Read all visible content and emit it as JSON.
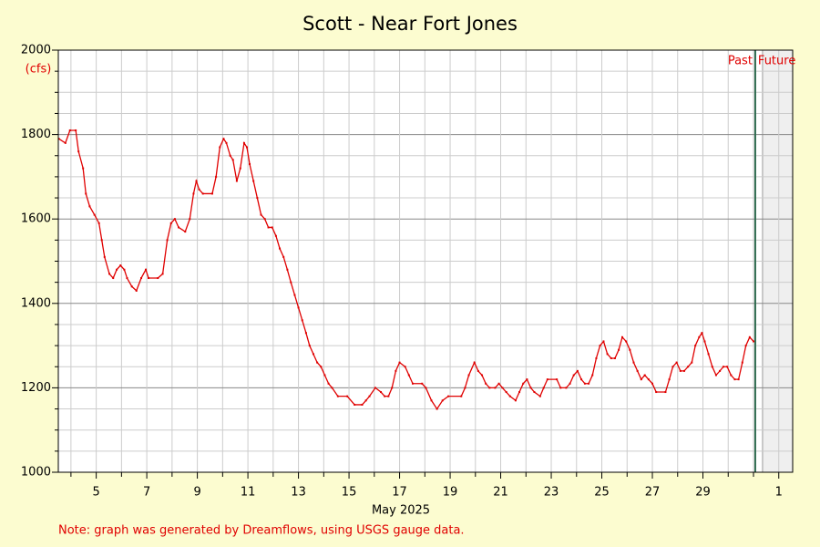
{
  "chart_data": {
    "type": "line",
    "title": "Scott - Near Fort Jones",
    "y_label": "(cfs)",
    "x_label": "May 2025",
    "note": "Note: graph was generated by Dreamflows, using USGS gauge data.",
    "past_label": "Past",
    "future_label": "Future",
    "divider_x": 31.07,
    "color": "#e00000",
    "divider_color": "#2e6b4f",
    "xlim": [
      3.5,
      32.55
    ],
    "ylim": [
      1000,
      2000
    ],
    "xticks": [
      5,
      7,
      9,
      11,
      13,
      15,
      17,
      19,
      21,
      23,
      25,
      27,
      29,
      {
        "value": 32,
        "label": "1"
      }
    ],
    "xminor_ticks": [
      4,
      6,
      8,
      10,
      12,
      14,
      16,
      18,
      20,
      22,
      24,
      26,
      28,
      30,
      31,
      33
    ],
    "yticks": [
      1000,
      1200,
      1400,
      1600,
      1800,
      2000
    ],
    "yminor_ticks": [
      1050,
      1100,
      1150,
      1250,
      1300,
      1350,
      1450,
      1500,
      1550,
      1650,
      1700,
      1750,
      1850,
      1900,
      1950
    ],
    "grid": true,
    "x": [
      3.52,
      3.78,
      3.96,
      4.19,
      4.3,
      4.48,
      4.59,
      4.74,
      4.93,
      5.11,
      5.22,
      5.33,
      5.52,
      5.67,
      5.81,
      5.96,
      6.11,
      6.22,
      6.41,
      6.59,
      6.78,
      6.96,
      7.07,
      7.44,
      7.63,
      7.81,
      7.96,
      8.11,
      8.26,
      8.52,
      8.7,
      8.85,
      8.96,
      9.07,
      9.22,
      9.59,
      9.74,
      9.89,
      10.04,
      10.15,
      10.3,
      10.41,
      10.56,
      10.7,
      10.85,
      10.96,
      11.07,
      11.22,
      11.37,
      11.52,
      11.67,
      11.81,
      11.96,
      12.11,
      12.26,
      12.41,
      12.56,
      12.7,
      12.85,
      13.0,
      13.15,
      13.3,
      13.44,
      13.59,
      13.74,
      13.89,
      14.04,
      14.19,
      14.33,
      14.56,
      14.93,
      15.22,
      15.52,
      15.67,
      15.81,
      16.04,
      16.26,
      16.41,
      16.56,
      16.7,
      16.85,
      17.0,
      17.22,
      17.37,
      17.52,
      17.89,
      18.04,
      18.26,
      18.48,
      18.7,
      18.93,
      19.44,
      19.59,
      19.74,
      19.96,
      20.11,
      20.26,
      20.41,
      20.56,
      20.78,
      20.93,
      21.07,
      21.22,
      21.37,
      21.59,
      21.74,
      21.89,
      22.04,
      22.19,
      22.33,
      22.56,
      22.7,
      22.85,
      23.22,
      23.37,
      23.59,
      23.74,
      23.89,
      24.04,
      24.19,
      24.33,
      24.48,
      24.63,
      24.78,
      24.93,
      25.07,
      25.22,
      25.37,
      25.52,
      25.67,
      25.81,
      25.96,
      26.11,
      26.26,
      26.41,
      26.56,
      26.7,
      26.85,
      27.0,
      27.15,
      27.52,
      27.67,
      27.81,
      27.96,
      28.11,
      28.26,
      28.41,
      28.56,
      28.7,
      28.85,
      28.96,
      29.07,
      29.22,
      29.37,
      29.52,
      29.67,
      29.81,
      29.96,
      30.11,
      30.26,
      30.41,
      30.56,
      30.7,
      30.85,
      31.0
    ],
    "values": [
      1790,
      1780,
      1810,
      1810,
      1760,
      1720,
      1660,
      1630,
      1610,
      1590,
      1550,
      1510,
      1470,
      1460,
      1480,
      1490,
      1480,
      1460,
      1440,
      1430,
      1460,
      1480,
      1460,
      1460,
      1470,
      1550,
      1590,
      1600,
      1580,
      1570,
      1600,
      1660,
      1690,
      1670,
      1660,
      1660,
      1700,
      1770,
      1790,
      1780,
      1750,
      1740,
      1690,
      1720,
      1780,
      1770,
      1730,
      1690,
      1650,
      1610,
      1600,
      1580,
      1580,
      1560,
      1530,
      1510,
      1480,
      1450,
      1420,
      1390,
      1360,
      1330,
      1300,
      1280,
      1260,
      1250,
      1230,
      1210,
      1200,
      1180,
      1180,
      1160,
      1160,
      1170,
      1180,
      1200,
      1190,
      1180,
      1180,
      1200,
      1240,
      1260,
      1250,
      1230,
      1210,
      1210,
      1200,
      1170,
      1150,
      1170,
      1180,
      1180,
      1200,
      1230,
      1260,
      1240,
      1230,
      1210,
      1200,
      1200,
      1210,
      1200,
      1190,
      1180,
      1170,
      1190,
      1210,
      1220,
      1200,
      1190,
      1180,
      1200,
      1220,
      1220,
      1200,
      1200,
      1210,
      1230,
      1240,
      1220,
      1210,
      1210,
      1230,
      1270,
      1300,
      1310,
      1280,
      1270,
      1270,
      1290,
      1320,
      1310,
      1290,
      1260,
      1240,
      1220,
      1230,
      1220,
      1210,
      1190,
      1190,
      1220,
      1250,
      1260,
      1240,
      1240,
      1250,
      1260,
      1300,
      1320,
      1330,
      1310,
      1280,
      1250,
      1230,
      1240,
      1250,
      1250,
      1230,
      1220,
      1220,
      1260,
      1300,
      1320,
      1310
    ]
  }
}
